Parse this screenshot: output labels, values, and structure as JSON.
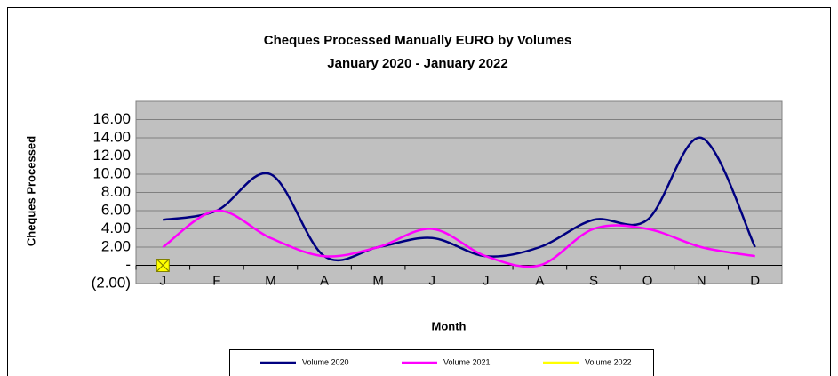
{
  "chart_data": {
    "type": "line",
    "title": "Cheques Processed Manually EURO by Volumes",
    "subtitle": "January 2020 - January 2022",
    "x_label": "Month",
    "y_label": "Cheques Processed",
    "categories": [
      "J",
      "F",
      "M",
      "A",
      "M",
      "J",
      "J",
      "A",
      "S",
      "O",
      "N",
      "D"
    ],
    "series": [
      {
        "name": "Volume 2020",
        "color": "#000080",
        "values": [
          5,
          6,
          10,
          1,
          2,
          3,
          1,
          2,
          5,
          5,
          14,
          2
        ]
      },
      {
        "name": "Volume 2021",
        "color": "#ff00ff",
        "values": [
          2,
          6,
          3,
          1,
          2,
          4,
          1,
          0,
          4,
          4,
          2,
          1
        ]
      },
      {
        "name": "Volume 2022",
        "color": "#ffff00",
        "values": [
          0,
          null,
          null,
          null,
          null,
          null,
          null,
          null,
          null,
          null,
          null,
          null
        ]
      }
    ],
    "ylim": [
      -2,
      18
    ],
    "yticks": [
      {
        "value": -2,
        "label": "(2.00)"
      },
      {
        "value": 0,
        "label": "-"
      },
      {
        "value": 2,
        "label": "2.00"
      },
      {
        "value": 4,
        "label": "4.00"
      },
      {
        "value": 6,
        "label": "6.00"
      },
      {
        "value": 8,
        "label": "8.00"
      },
      {
        "value": 10,
        "label": "10.00"
      },
      {
        "value": 12,
        "label": "12.00"
      },
      {
        "value": 14,
        "label": "14.00"
      },
      {
        "value": 16,
        "label": "16.00"
      }
    ],
    "grid": true,
    "smooth": true,
    "legend": "bottom"
  }
}
